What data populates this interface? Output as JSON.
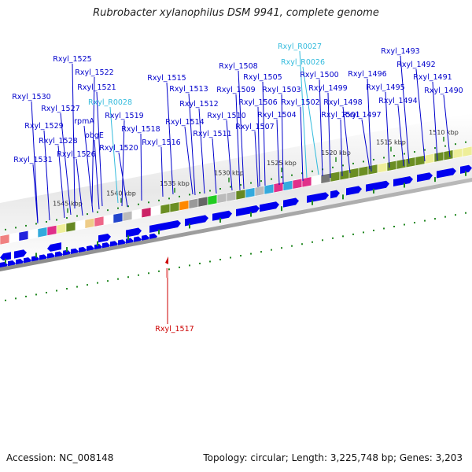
{
  "title": "Rubrobacter xylanophilus DSM 9941, complete genome",
  "footer": {
    "accession": "Accession: NC_008148",
    "summary": "Topology: circular; Length: 3,225,748 bp; Genes: 3,203"
  },
  "colors": {
    "gene_label": "#0000cc",
    "rna_label": "#33bbdd",
    "highlight_label": "#cc0000",
    "arrow": "#0000ee",
    "backbone": "#999999",
    "tick": "#228822"
  },
  "scale_ticks": [
    "1545 kbp",
    "1540 kbp",
    "1535 kbp",
    "1530 kbp",
    "1525 kbp",
    "1520 kbp",
    "1515 kbp",
    "1510 kbp"
  ],
  "gene_labels": [
    {
      "text": "Rxyl_1525",
      "kind": "gene"
    },
    {
      "text": "Rxyl_1522",
      "kind": "gene"
    },
    {
      "text": "Rxyl_1521",
      "kind": "gene"
    },
    {
      "text": "Rxyl_R0028",
      "kind": "rna"
    },
    {
      "text": "Rxyl_1530",
      "kind": "gene"
    },
    {
      "text": "Rxyl_1527",
      "kind": "gene"
    },
    {
      "text": "rpmA",
      "kind": "gene"
    },
    {
      "text": "Rxyl_1519",
      "kind": "gene"
    },
    {
      "text": "Rxyl_1529",
      "kind": "gene"
    },
    {
      "text": "obgE",
      "kind": "gene"
    },
    {
      "text": "Rxyl_1518",
      "kind": "gene"
    },
    {
      "text": "Rxyl_1528",
      "kind": "gene"
    },
    {
      "text": "Rxyl_1520",
      "kind": "gene"
    },
    {
      "text": "Rxyl_1526",
      "kind": "gene"
    },
    {
      "text": "Rxyl_1531",
      "kind": "gene"
    },
    {
      "text": "Rxyl_1516",
      "kind": "gene"
    },
    {
      "text": "Rxyl_1515",
      "kind": "gene"
    },
    {
      "text": "Rxyl_1513",
      "kind": "gene"
    },
    {
      "text": "Rxyl_1512",
      "kind": "gene"
    },
    {
      "text": "Rxyl_1514",
      "kind": "gene"
    },
    {
      "text": "Rxyl_1511",
      "kind": "gene"
    },
    {
      "text": "Rxyl_1508",
      "kind": "gene"
    },
    {
      "text": "Rxyl_1505",
      "kind": "gene"
    },
    {
      "text": "Rxyl_1509",
      "kind": "gene"
    },
    {
      "text": "Rxyl_1503",
      "kind": "gene"
    },
    {
      "text": "Rxyl_1506",
      "kind": "gene"
    },
    {
      "text": "Rxyl_1510",
      "kind": "gene"
    },
    {
      "text": "Rxyl_1504",
      "kind": "gene"
    },
    {
      "text": "Rxyl_1507",
      "kind": "gene"
    },
    {
      "text": "Rxyl_R0027",
      "kind": "rna"
    },
    {
      "text": "Rxyl_R0026",
      "kind": "rna"
    },
    {
      "text": "Rxyl_1500",
      "kind": "gene"
    },
    {
      "text": "Rxyl_1502",
      "kind": "gene"
    },
    {
      "text": "Rxyl_1499",
      "kind": "gene"
    },
    {
      "text": "Rxyl_1498",
      "kind": "gene"
    },
    {
      "text": "Rxyl_1501",
      "kind": "gene"
    },
    {
      "text": "Rxyl_1497",
      "kind": "gene"
    },
    {
      "text": "Rxyl_1496",
      "kind": "gene"
    },
    {
      "text": "Rxyl_1495",
      "kind": "gene"
    },
    {
      "text": "Rxyl_1494",
      "kind": "gene"
    },
    {
      "text": "Rxyl_1493",
      "kind": "gene"
    },
    {
      "text": "Rxyl_1492",
      "kind": "gene"
    },
    {
      "text": "Rxyl_1491",
      "kind": "gene"
    },
    {
      "text": "Rxyl_1490",
      "kind": "gene"
    },
    {
      "text": "Rxyl_1517",
      "kind": "highlight"
    }
  ]
}
